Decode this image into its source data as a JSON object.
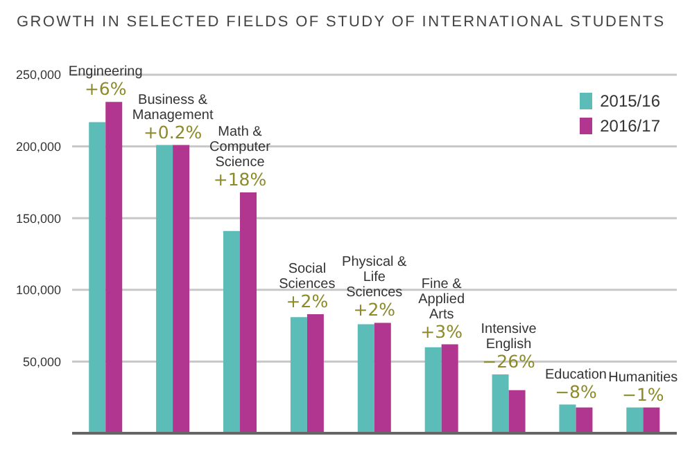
{
  "chart_data": {
    "type": "bar",
    "title": "GROWTH IN SELECTED FIELDS OF STUDY OF INTERNATIONAL STUDENTS",
    "categories": [
      "Engineering",
      "Business & Management",
      "Math & Computer Science",
      "Social Sciences",
      "Physical & Life Sciences",
      "Fine & Applied Arts",
      "Intensive English",
      "Education",
      "Humanities"
    ],
    "series": [
      {
        "name": "2015/16",
        "color": "#5bbcb8",
        "values": [
          217000,
          201000,
          141000,
          81000,
          76000,
          60000,
          41000,
          20000,
          18000
        ]
      },
      {
        "name": "2016/17",
        "color": "#b0368f",
        "values": [
          231000,
          201000,
          168000,
          83000,
          77000,
          62000,
          30000,
          18000,
          18000
        ]
      }
    ],
    "annotations": [
      "+6%",
      "+0.2%",
      "+18%",
      "+2%",
      "+2%",
      "+3%",
      "−26%",
      "−8%",
      "−1%"
    ],
    "ylim": [
      0,
      250000
    ],
    "yticks": [
      {
        "value": 0,
        "label": null
      },
      {
        "value": 50000,
        "label": "50,000"
      },
      {
        "value": 100000,
        "label": "100,000"
      },
      {
        "value": 150000,
        "label": "150,000"
      },
      {
        "value": 200000,
        "label": "200,000"
      },
      {
        "value": 250000,
        "label": "250,000"
      }
    ],
    "grid": "y",
    "legend": "top right",
    "tick_labels": "y"
  }
}
